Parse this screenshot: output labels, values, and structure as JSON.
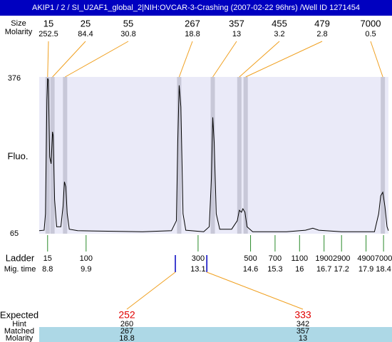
{
  "chart_data": {
    "type": "electropherogram",
    "title": "AKIP1 / 2 / SI_U2AF1_global_2|NIH:OVCAR-3-Crashing (2007-02-22 96hrs) /Well ID 1271454",
    "size_label": "Size",
    "molarity_label": "Molarity",
    "y_label": "Fluo.",
    "ladder_label": "Ladder",
    "time_label": "Mig. time",
    "xlim": [
      8.56,
      18.54
    ],
    "ylim": [
      65,
      376
    ],
    "yticks": [
      65,
      376
    ],
    "peaks": {
      "sizes": [
        15,
        25,
        55,
        267,
        357,
        455,
        479,
        7000
      ],
      "molarity": [
        252.5,
        84.4,
        30.8,
        18.8,
        13,
        3.2,
        2.8,
        0.5
      ],
      "times": [
        8.8,
        8.94,
        9.3,
        12.56,
        13.52,
        14.28,
        14.46,
        18.38
      ]
    },
    "ladder": {
      "sizes": [
        15,
        100,
        300,
        500,
        700,
        1100,
        1900,
        2900,
        4900,
        7000
      ],
      "times": [
        8.8,
        9.9,
        13.1,
        14.6,
        15.3,
        16,
        16.7,
        17.2,
        17.9,
        18.4
      ]
    },
    "trace": {
      "x": [
        8.56,
        8.7,
        8.74,
        8.78,
        8.8,
        8.82,
        8.86,
        8.9,
        8.94,
        8.96,
        9.0,
        9.06,
        9.18,
        9.24,
        9.28,
        9.32,
        9.36,
        9.42,
        9.66,
        11.51,
        12.34,
        12.48,
        12.52,
        12.56,
        12.61,
        12.67,
        12.75,
        13.26,
        13.42,
        13.48,
        13.52,
        13.56,
        13.62,
        13.72,
        14.06,
        14.22,
        14.28,
        14.34,
        14.38,
        14.44,
        14.5,
        14.66,
        15.63,
        16.17,
        16.38,
        16.55,
        17.2,
        18.14,
        18.26,
        18.32,
        18.38,
        18.44,
        18.5,
        18.54
      ],
      "values": [
        71,
        72,
        105,
        333,
        376,
        373,
        219,
        205,
        269,
        262,
        133,
        79,
        79,
        119,
        169,
        159,
        105,
        74,
        71,
        69,
        71,
        91,
        248,
        362,
        319,
        105,
        72,
        69,
        79,
        176,
        298,
        248,
        105,
        74,
        74,
        91,
        112,
        108,
        115,
        108,
        79,
        69,
        69,
        72,
        76,
        72,
        69,
        69,
        105,
        141,
        148,
        119,
        79,
        71
      ],
      "color": "#000000"
    },
    "expected": {
      "label": "Expected",
      "hint_label": "Hint",
      "matched_label": "Matched",
      "molarity_label": "Molarity",
      "sizes": [
        252,
        333
      ],
      "times": [
        12.45,
        13.35
      ],
      "hint": [
        260,
        342
      ],
      "matched": [
        267,
        357
      ],
      "molarity": [
        18.8,
        13
      ]
    }
  }
}
